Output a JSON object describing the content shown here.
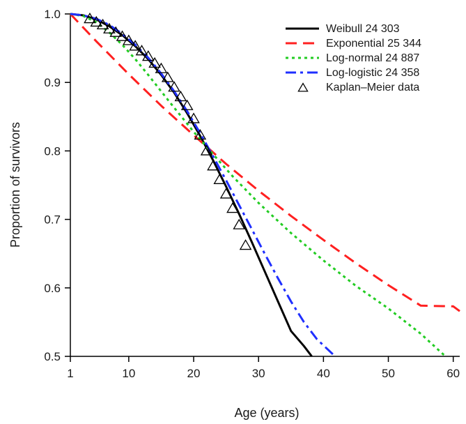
{
  "chart_data": {
    "type": "line",
    "title": "",
    "xlabel": "Age (years)",
    "ylabel": "Proportion of survivors",
    "xlim": [
      1,
      61
    ],
    "ylim": [
      0.5,
      1.0
    ],
    "x_ticks": [
      1,
      10,
      20,
      30,
      40,
      50,
      60
    ],
    "x_tick_labels": [
      "1",
      "10",
      "20",
      "30",
      "40",
      "50",
      "60"
    ],
    "y_ticks": [
      0.5,
      0.6,
      0.7,
      0.8,
      0.9,
      1.0
    ],
    "y_tick_labels": [
      "0.5",
      "0.6",
      "0.7",
      "0.8",
      "0.9",
      "1.0"
    ],
    "grid": false,
    "legend_position": "top-right",
    "series": [
      {
        "name": "Weibull 24 303",
        "style": "solid",
        "color": "#000000",
        "x": [
          1,
          3,
          5,
          7,
          9,
          11,
          13,
          15,
          17,
          19,
          21,
          23,
          25,
          27,
          29,
          31,
          33,
          35,
          37,
          38.2
        ],
        "y": [
          1.0,
          0.998,
          0.992,
          0.982,
          0.969,
          0.953,
          0.934,
          0.911,
          0.885,
          0.855,
          0.822,
          0.786,
          0.748,
          0.708,
          0.666,
          0.623,
          0.58,
          0.537,
          0.515,
          0.5
        ]
      },
      {
        "name": "Exponential 25 344",
        "style": "dashed",
        "color": "#ff2020",
        "x": [
          1,
          5,
          10,
          15,
          20,
          25,
          30,
          35,
          40,
          45,
          50,
          55,
          60,
          61
        ],
        "y": [
          1.0,
          0.96,
          0.912,
          0.866,
          0.823,
          0.781,
          0.742,
          0.705,
          0.67,
          0.636,
          0.604,
          0.574,
          0.573,
          0.566
        ]
      },
      {
        "name": "Log-normal 24 887",
        "style": "dotted",
        "color": "#22cc22",
        "x": [
          1,
          3,
          5,
          7,
          9,
          11,
          13,
          15,
          17,
          20,
          23,
          26,
          30,
          35,
          40,
          45,
          50,
          55,
          58.8
        ],
        "y": [
          1.0,
          0.997,
          0.988,
          0.973,
          0.955,
          0.934,
          0.911,
          0.887,
          0.863,
          0.828,
          0.795,
          0.763,
          0.724,
          0.68,
          0.64,
          0.603,
          0.57,
          0.533,
          0.5
        ]
      },
      {
        "name": "Log-logistic 24 358",
        "style": "dashdot",
        "color": "#1f2fff",
        "x": [
          1,
          3,
          5,
          7,
          9,
          11,
          13,
          15,
          17,
          19,
          21,
          23,
          25,
          27,
          29,
          31,
          33,
          35,
          37,
          39,
          41.8
        ],
        "y": [
          1.0,
          0.998,
          0.993,
          0.984,
          0.971,
          0.955,
          0.936,
          0.913,
          0.887,
          0.858,
          0.826,
          0.792,
          0.757,
          0.721,
          0.685,
          0.649,
          0.614,
          0.58,
          0.55,
          0.525,
          0.5
        ]
      },
      {
        "name": "Kaplan–Meier data",
        "style": "markers",
        "marker": "open-triangle",
        "color": "#000000",
        "x": [
          4,
          5,
          6,
          7,
          8,
          9,
          10,
          11,
          12,
          13,
          14,
          15,
          16,
          17,
          18,
          19,
          20,
          21,
          22,
          23,
          24,
          25,
          26,
          27,
          28
        ],
        "y": [
          0.993,
          0.988,
          0.984,
          0.978,
          0.973,
          0.967,
          0.961,
          0.953,
          0.946,
          0.938,
          0.928,
          0.92,
          0.907,
          0.893,
          0.879,
          0.866,
          0.847,
          0.823,
          0.8,
          0.778,
          0.758,
          0.737,
          0.716,
          0.692,
          0.662
        ]
      }
    ]
  }
}
